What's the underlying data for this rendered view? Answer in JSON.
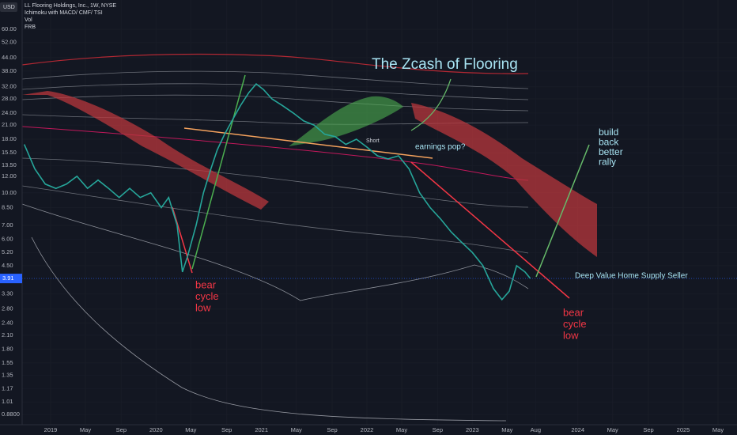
{
  "chart_data": {
    "type": "line",
    "currency": "USD",
    "header": [
      "LL Flooring Holdings, Inc., 1W, NYSE",
      "Ichimoku with MACD/ CMF/ TSI",
      "Vol",
      "FRB"
    ],
    "x": [
      2018.75,
      2018.85,
      2018.95,
      2019.05,
      2019.15,
      2019.25,
      2019.35,
      2019.45,
      2019.55,
      2019.65,
      2019.75,
      2019.85,
      2019.95,
      2020.05,
      2020.12,
      2020.2,
      2020.25,
      2020.3,
      2020.38,
      2020.45,
      2020.52,
      2020.58,
      2020.65,
      2020.72,
      2020.8,
      2020.88,
      2020.95,
      2021.02,
      2021.1,
      2021.2,
      2021.3,
      2021.4,
      2021.5,
      2021.6,
      2021.7,
      2021.8,
      2021.9,
      2022.0,
      2022.1,
      2022.2,
      2022.3,
      2022.4,
      2022.5,
      2022.6,
      2022.7,
      2022.8,
      2022.9,
      2023.0,
      2023.1,
      2023.2,
      2023.28,
      2023.35,
      2023.42,
      2023.5,
      2023.55
    ],
    "values": [
      17,
      13,
      11,
      10.5,
      11,
      12,
      10.5,
      11.5,
      10.5,
      9.5,
      10.5,
      9.5,
      10,
      8.5,
      9.5,
      7,
      4.2,
      5,
      7,
      10,
      13,
      16,
      19,
      22,
      26,
      30,
      33,
      31,
      28,
      26,
      24,
      22,
      21,
      19,
      18.5,
      17,
      18,
      16.5,
      15,
      14.5,
      15,
      13,
      10,
      8.5,
      7.5,
      6.5,
      5.8,
      5.2,
      4.5,
      3.5,
      3.1,
      3.4,
      4.5,
      4.2,
      3.91
    ],
    "color": "#26a69a",
    "last_price": 3.91,
    "log_scale": true,
    "xlim": [
      2018.73,
      2025.51
    ],
    "ylim": [
      0.787,
      82.8
    ],
    "xticks": [
      {
        "value": 2019.0,
        "label": "2019"
      },
      {
        "value": 2019.33,
        "label": "May"
      },
      {
        "value": 2019.67,
        "label": "Sep"
      },
      {
        "value": 2020.0,
        "label": "2020"
      },
      {
        "value": 2020.33,
        "label": "May"
      },
      {
        "value": 2020.67,
        "label": "Sep"
      },
      {
        "value": 2021.0,
        "label": "2021"
      },
      {
        "value": 2021.33,
        "label": "May"
      },
      {
        "value": 2021.67,
        "label": "Sep"
      },
      {
        "value": 2022.0,
        "label": "2022"
      },
      {
        "value": 2022.33,
        "label": "May"
      },
      {
        "value": 2022.67,
        "label": "Sep"
      },
      {
        "value": 2023.0,
        "label": "2023"
      },
      {
        "value": 2023.33,
        "label": "May"
      },
      {
        "value": 2023.6,
        "label": "Aug"
      },
      {
        "value": 2024.0,
        "label": "2024"
      },
      {
        "value": 2024.33,
        "label": "May"
      },
      {
        "value": 2024.67,
        "label": "Sep"
      },
      {
        "value": 2025.0,
        "label": "2025"
      },
      {
        "value": 2025.33,
        "label": "May"
      }
    ],
    "yticks": [
      {
        "value": 60,
        "label": "60.00"
      },
      {
        "value": 52,
        "label": "52.00"
      },
      {
        "value": 44,
        "label": "44.00"
      },
      {
        "value": 38,
        "label": "38.00"
      },
      {
        "value": 32,
        "label": "32.00"
      },
      {
        "value": 28,
        "label": "28.00"
      },
      {
        "value": 24,
        "label": "24.00"
      },
      {
        "value": 21,
        "label": "21.00"
      },
      {
        "value": 18,
        "label": "18.00"
      },
      {
        "value": 15.5,
        "label": "15.50"
      },
      {
        "value": 13.5,
        "label": "13.50"
      },
      {
        "value": 12,
        "label": "12.00"
      },
      {
        "value": 10,
        "label": "10.00"
      },
      {
        "value": 8.5,
        "label": "8.50"
      },
      {
        "value": 7,
        "label": "7.00"
      },
      {
        "value": 6,
        "label": "6.00"
      },
      {
        "value": 5.2,
        "label": "5.20"
      },
      {
        "value": 4.5,
        "label": "4.50"
      },
      {
        "value": 3.3,
        "label": "3.30"
      },
      {
        "value": 2.8,
        "label": "2.80"
      },
      {
        "value": 2.4,
        "label": "2.40"
      },
      {
        "value": 2.1,
        "label": "2.10"
      },
      {
        "value": 1.8,
        "label": "1.80"
      },
      {
        "value": 1.55,
        "label": "1.55"
      },
      {
        "value": 1.35,
        "label": "1.35"
      },
      {
        "value": 1.17,
        "label": "1.17"
      },
      {
        "value": 1.01,
        "label": "1.01"
      },
      {
        "value": 0.88,
        "label": "0.8800"
      }
    ],
    "grid": true,
    "annotations": {
      "title": "The  Zcash of Flooring",
      "earnings": "earnings pop?",
      "short": "Short",
      "rally": [
        "build",
        "back",
        "better",
        "rally"
      ],
      "bear1": [
        "bear",
        "cycle",
        "low"
      ],
      "bear2": [
        "bear",
        "cycle",
        "low"
      ],
      "seller": "Deep Value Home Supply Seller"
    }
  }
}
